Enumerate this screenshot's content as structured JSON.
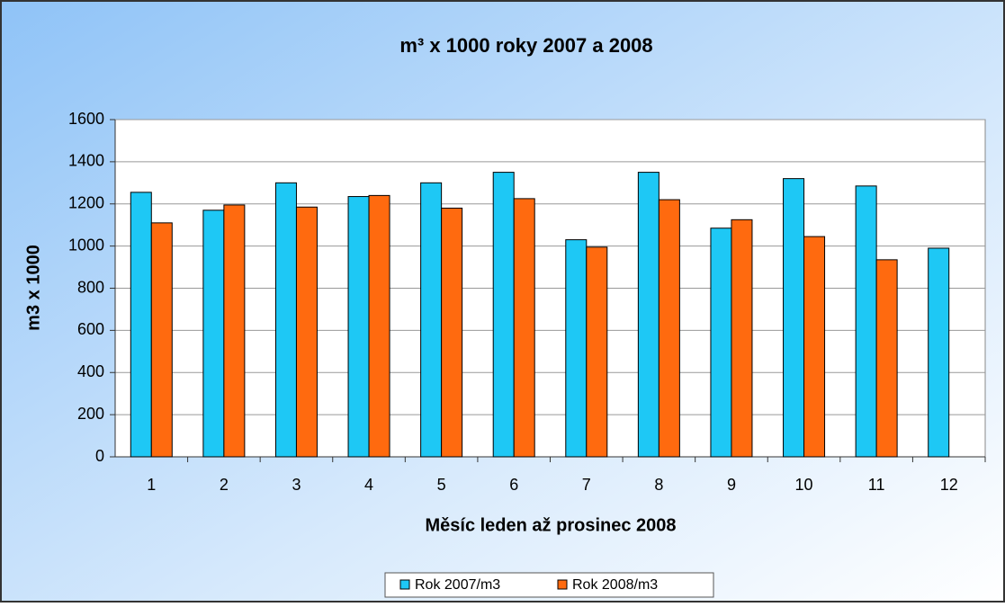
{
  "chart_data": {
    "type": "bar",
    "title": "m³ x 1000 roky 2007 a 2008",
    "x_label": "Měsíc leden až prosinec 2008",
    "y_label": "m3 x 1000",
    "categories": [
      "1",
      "2",
      "3",
      "4",
      "5",
      "6",
      "7",
      "8",
      "9",
      "10",
      "11",
      "12"
    ],
    "series": [
      {
        "name": "Rok 2007/m3",
        "color": "#1ec8f5",
        "values": [
          1255,
          1170,
          1300,
          1235,
          1300,
          1350,
          1030,
          1350,
          1085,
          1320,
          1285,
          990
        ]
      },
      {
        "name": "Rok 2008/m3",
        "color": "#ff6a0f",
        "values": [
          1110,
          1195,
          1185,
          1240,
          1180,
          1225,
          995,
          1220,
          1125,
          1045,
          935,
          null
        ]
      }
    ],
    "ylim": [
      0,
      1600
    ],
    "yticks": [
      0,
      200,
      400,
      600,
      800,
      1000,
      1200,
      1400,
      1600
    ],
    "grid": true
  }
}
